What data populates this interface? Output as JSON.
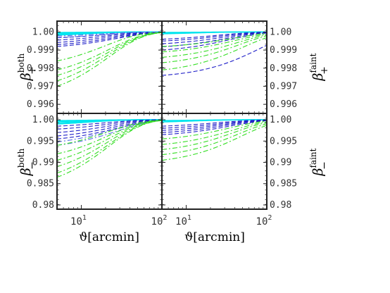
{
  "colors": {
    "background": "#ffffff",
    "frame": "#222222",
    "cyan": "#00e5ee",
    "blue_dark": "#2020c8",
    "blue_mid": "#5a6fe6",
    "green": "#33dd22"
  },
  "chart_data": [
    {
      "type": "line",
      "panel": "top-left",
      "ylabel_main": "β",
      "ylabel_sub": "+",
      "ylabel_sup": "both",
      "xscale": "log",
      "xlim": [
        5,
        100
      ],
      "ylim": [
        0.9955,
        1.0006
      ],
      "y_ticks": [
        "1.00",
        "0.999",
        "0.998",
        "0.997",
        "0.996"
      ],
      "y_tick_values": [
        1.0,
        0.999,
        0.998,
        0.997,
        0.996
      ],
      "series_groups": [
        {
          "color": "cyan",
          "style": "solid",
          "curves": [
            {
              "y0": 0.99997,
              "tau": 12
            },
            {
              "y0": 0.99993,
              "tau": 12
            },
            {
              "y0": 0.99988,
              "tau": 12
            },
            {
              "y0": 0.99983,
              "tau": 12
            }
          ]
        },
        {
          "color": "blue_dark",
          "style": "dashed",
          "curves": [
            {
              "y0": 0.99968,
              "tau": 20
            },
            {
              "y0": 0.99955,
              "tau": 22
            },
            {
              "y0": 0.99942,
              "tau": 24
            },
            {
              "y0": 0.9993,
              "tau": 26
            },
            {
              "y0": 0.9992,
              "tau": 28
            }
          ]
        },
        {
          "color": "blue_mid",
          "style": "dashdot",
          "curves": [
            {
              "y0": 0.99978,
              "tau": 18
            },
            {
              "y0": 0.9997,
              "tau": 20
            }
          ]
        },
        {
          "color": "green",
          "style": "dashdot",
          "curves": [
            {
              "y0": 0.9979,
              "tau": 22
            },
            {
              "y0": 0.9976,
              "tau": 22
            },
            {
              "y0": 0.9973,
              "tau": 22
            },
            {
              "y0": 0.997,
              "tau": 22
            },
            {
              "y0": 0.9984,
              "tau": 20
            }
          ]
        }
      ]
    },
    {
      "type": "line",
      "panel": "top-right",
      "ylabel_main": "β",
      "ylabel_sub": "+",
      "ylabel_sup": "faint",
      "xscale": "log",
      "xlim": [
        5,
        100
      ],
      "ylim": [
        0.9955,
        1.0006
      ],
      "y_ticks": [
        "1.00",
        "0.999",
        "0.998",
        "0.997",
        "0.996"
      ],
      "y_tick_values": [
        1.0,
        0.999,
        0.998,
        0.997,
        0.996
      ],
      "series_groups": [
        {
          "color": "cyan",
          "style": "solid",
          "curves": [
            {
              "y0": 0.99997,
              "tau": 12
            },
            {
              "y0": 0.99993,
              "tau": 12
            },
            {
              "y0": 0.9999,
              "tau": 12
            }
          ]
        },
        {
          "color": "blue_dark",
          "style": "dashed",
          "curves": [
            {
              "y0": 0.9996,
              "tau": 25
            },
            {
              "y0": 0.9995,
              "tau": 28
            },
            {
              "y0": 0.99935,
              "tau": 30
            },
            {
              "y0": 0.99918,
              "tau": 32
            },
            {
              "y0": 0.999,
              "tau": 35
            },
            {
              "y0": 0.9976,
              "tau": 80
            }
          ]
        },
        {
          "color": "green",
          "style": "dashdot",
          "curves": [
            {
              "y0": 0.9992,
              "tau": 40
            },
            {
              "y0": 0.9989,
              "tau": 42
            },
            {
              "y0": 0.9986,
              "tau": 44
            },
            {
              "y0": 0.9983,
              "tau": 46
            },
            {
              "y0": 0.9979,
              "tau": 50
            }
          ]
        }
      ]
    },
    {
      "type": "line",
      "panel": "bottom-left",
      "ylabel_main": "β",
      "ylabel_sub": "−",
      "ylabel_sup": "both",
      "xscale": "log",
      "xlim": [
        5,
        100
      ],
      "ylim": [
        0.979,
        1.0015
      ],
      "y_ticks": [
        "1.00",
        "0.995",
        "0.99",
        "0.985",
        "0.98"
      ],
      "y_tick_values": [
        1.0,
        0.995,
        0.99,
        0.985,
        0.98
      ],
      "series_groups": [
        {
          "color": "cyan",
          "style": "solid",
          "curves": [
            {
              "y0": 0.9998,
              "tau": 12
            },
            {
              "y0": 0.9996,
              "tau": 12
            },
            {
              "y0": 0.9993,
              "tau": 12
            },
            {
              "y0": 0.999,
              "tau": 12
            }
          ]
        },
        {
          "color": "blue_dark",
          "style": "dashed",
          "curves": [
            {
              "y0": 0.9985,
              "tau": 20
            },
            {
              "y0": 0.9978,
              "tau": 22
            },
            {
              "y0": 0.997,
              "tau": 24
            },
            {
              "y0": 0.9962,
              "tau": 26
            },
            {
              "y0": 0.9955,
              "tau": 28
            }
          ]
        },
        {
          "color": "blue_mid",
          "style": "dashdot",
          "curves": [
            {
              "y0": 0.9948,
              "tau": 26
            },
            {
              "y0": 0.994,
              "tau": 28
            }
          ]
        },
        {
          "color": "green",
          "style": "dashdot",
          "curves": [
            {
              "y0": 0.994,
              "tau": 22
            },
            {
              "y0": 0.992,
              "tau": 22
            },
            {
              "y0": 0.9905,
              "tau": 22
            },
            {
              "y0": 0.989,
              "tau": 22
            },
            {
              "y0": 0.9875,
              "tau": 22
            },
            {
              "y0": 0.9865,
              "tau": 22
            }
          ]
        }
      ]
    },
    {
      "type": "line",
      "panel": "bottom-right",
      "ylabel_main": "β",
      "ylabel_sub": "−",
      "ylabel_sup": "faint",
      "xscale": "log",
      "xlim": [
        5,
        100
      ],
      "ylim": [
        0.979,
        1.0015
      ],
      "y_ticks": [
        "1.00",
        "0.995",
        "0.99",
        "0.985",
        "0.98"
      ],
      "y_tick_values": [
        1.0,
        0.995,
        0.99,
        0.985,
        0.98
      ],
      "series_groups": [
        {
          "color": "cyan",
          "style": "solid",
          "curves": [
            {
              "y0": 0.9998,
              "tau": 12
            },
            {
              "y0": 0.9995,
              "tau": 12
            }
          ]
        },
        {
          "color": "blue_dark",
          "style": "dashed",
          "curves": [
            {
              "y0": 0.9985,
              "tau": 25
            },
            {
              "y0": 0.998,
              "tau": 28
            },
            {
              "y0": 0.9975,
              "tau": 30
            },
            {
              "y0": 0.997,
              "tau": 32
            },
            {
              "y0": 0.9965,
              "tau": 35
            }
          ]
        },
        {
          "color": "green",
          "style": "dashdot",
          "curves": [
            {
              "y0": 0.9955,
              "tau": 35
            },
            {
              "y0": 0.9942,
              "tau": 38
            },
            {
              "y0": 0.993,
              "tau": 40
            },
            {
              "y0": 0.9918,
              "tau": 44
            },
            {
              "y0": 0.9905,
              "tau": 48
            }
          ]
        }
      ]
    }
  ],
  "x_axis": {
    "tick_values": [
      10,
      100
    ],
    "left_labels": [
      {
        "base": "10",
        "exp": "1"
      },
      {
        "base": "10",
        "exp": "2"
      }
    ],
    "right_labels": [
      {
        "base": "10",
        "exp": "1"
      },
      {
        "base": "10",
        "exp": "2"
      }
    ],
    "title": "ϑ[arcmin]"
  }
}
